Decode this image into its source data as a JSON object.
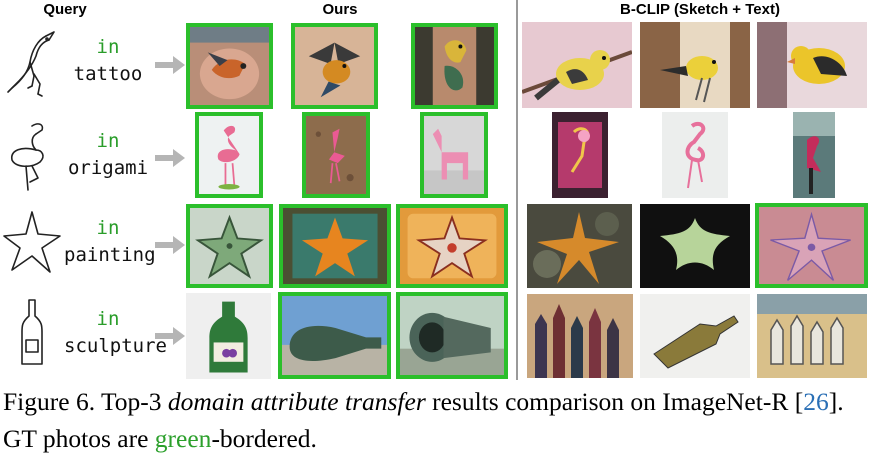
{
  "headers": {
    "query": "Query",
    "ours": "Ours",
    "bclip": "B-CLIP (Sketch + Text)"
  },
  "rows": [
    {
      "sketch": "bird-sketch",
      "in_word": "in",
      "domain": "tattoo",
      "ours": [
        {
          "subject": "bird tattoo",
          "gt": true
        },
        {
          "subject": "bird tattoo",
          "gt": true
        },
        {
          "subject": "bird tattoo",
          "gt": true
        }
      ],
      "bclip": [
        {
          "subject": "yellow bird photo",
          "gt": false
        },
        {
          "subject": "yellow bird photo",
          "gt": false
        },
        {
          "subject": "yellow bird photo",
          "gt": false
        }
      ]
    },
    {
      "sketch": "flamingo-sketch",
      "in_word": "in",
      "domain": "origami",
      "ours": [
        {
          "subject": "flamingo origami",
          "gt": true
        },
        {
          "subject": "flamingo origami",
          "gt": true
        },
        {
          "subject": "flamingo origami",
          "gt": true
        }
      ],
      "bclip": [
        {
          "subject": "flamingo graffiti",
          "gt": false
        },
        {
          "subject": "flamingo drawing",
          "gt": false
        },
        {
          "subject": "flamingo photo",
          "gt": false
        }
      ]
    },
    {
      "sketch": "starfish-sketch",
      "in_word": "in",
      "domain": "painting",
      "ours": [
        {
          "subject": "starfish painting",
          "gt": true
        },
        {
          "subject": "starfish painting",
          "gt": true
        },
        {
          "subject": "starfish painting",
          "gt": true
        }
      ],
      "bclip": [
        {
          "subject": "starfish photo",
          "gt": false
        },
        {
          "subject": "starfish toy",
          "gt": false
        },
        {
          "subject": "starfish painting",
          "gt": true
        }
      ]
    },
    {
      "sketch": "bottle-sketch",
      "in_word": "in",
      "domain": "sculpture",
      "ours": [
        {
          "subject": "bottle sculpture",
          "gt": true
        },
        {
          "subject": "bottle sculpture",
          "gt": true
        },
        {
          "subject": "bottle sculpture",
          "gt": true
        }
      ],
      "bclip": [
        {
          "subject": "bottles painting",
          "gt": false
        },
        {
          "subject": "bottle drawing",
          "gt": false
        },
        {
          "subject": "bottles mural",
          "gt": false
        }
      ]
    }
  ],
  "caption": {
    "prefix": "Figure 6.  Top-3 ",
    "italic": "domain attribute transfer",
    "mid": " results comparison on ImageNet-R [",
    "ref": "26",
    "mid2": "]. GT photos are ",
    "green_word": "green",
    "suffix": "-bordered."
  },
  "colors": {
    "gt_border": "#2bbf2b",
    "in_word": "#2a9d2a",
    "ref": "#2a6fb5",
    "green_word": "#2ca02c"
  }
}
